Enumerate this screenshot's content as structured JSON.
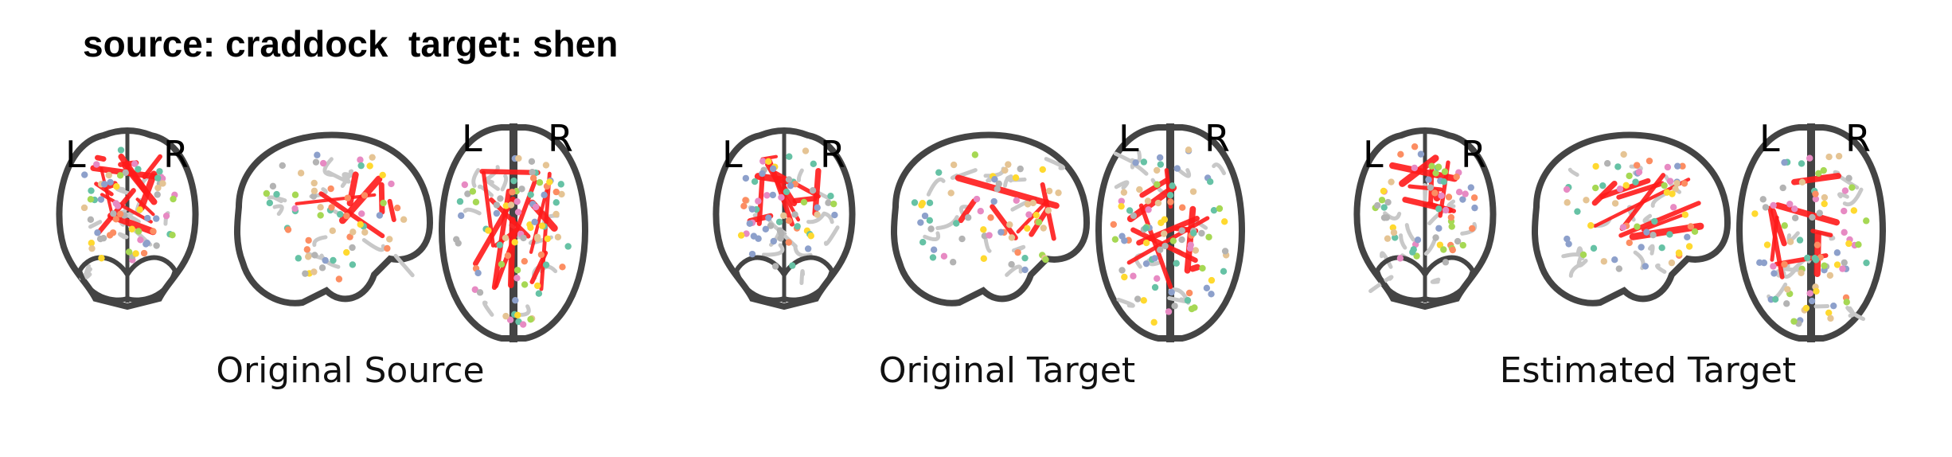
{
  "title": "source: craddock  target: shen",
  "panels": [
    {
      "label": "Original Source",
      "letters": {
        "left": "L",
        "right": "R"
      }
    },
    {
      "label": "Original Target",
      "letters": {
        "left": "L",
        "right": "R"
      }
    },
    {
      "label": "Estimated Target",
      "letters": {
        "left": "L",
        "right": "R"
      }
    }
  ],
  "colors": {
    "outline": "#444444",
    "edges": "#ff1a1a",
    "node_palette": [
      "#66c2a5",
      "#fc8d62",
      "#8da0cb",
      "#e78ac3",
      "#a6d854",
      "#ffd92f",
      "#e5c494",
      "#b3b3b3"
    ]
  }
}
